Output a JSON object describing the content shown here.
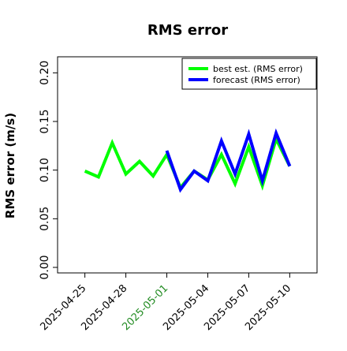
{
  "chart_data": {
    "type": "line",
    "title": "RMS error",
    "xlabel": "",
    "ylabel": "RMS error (m/s)",
    "ylim": [
      0.0,
      0.21
    ],
    "yticks": [
      0.0,
      0.05,
      0.1,
      0.15,
      0.2
    ],
    "ytick_labels": [
      "0.00",
      "0.05",
      "0.10",
      "0.15",
      "0.20"
    ],
    "xticks": [
      "2025-04-25",
      "2025-04-28",
      "2025-05-01",
      "2025-05-04",
      "2025-05-07",
      "2025-05-10"
    ],
    "xlim": [
      "2025-04-23",
      "2025-05-12"
    ],
    "highlight_tick": "2025-05-01",
    "highlight_color": "#228B22",
    "grid": false,
    "legend_position": "top-right",
    "series": [
      {
        "name": "best est. (RMS error)",
        "color": "#00ff00",
        "x": [
          "2025-04-25",
          "2025-04-26",
          "2025-04-27",
          "2025-04-28",
          "2025-04-29",
          "2025-04-30",
          "2025-05-01",
          "2025-05-02",
          "2025-05-03",
          "2025-05-04",
          "2025-05-05",
          "2025-05-06",
          "2025-05-07",
          "2025-05-08",
          "2025-05-09",
          "2025-05-10"
        ],
        "values": [
          0.099,
          0.093,
          0.128,
          0.096,
          0.109,
          0.094,
          0.116,
          0.082,
          0.099,
          0.09,
          0.116,
          0.086,
          0.124,
          0.084,
          0.132,
          0.104
        ]
      },
      {
        "name": "forecast (RMS error)",
        "color": "#0000ff",
        "x": [
          "2025-05-01",
          "2025-05-02",
          "2025-05-03",
          "2025-05-04",
          "2025-05-05",
          "2025-05-06",
          "2025-05-07",
          "2025-05-08",
          "2025-05-09",
          "2025-05-10"
        ],
        "values": [
          0.12,
          0.08,
          0.099,
          0.089,
          0.13,
          0.096,
          0.137,
          0.089,
          0.138,
          0.104
        ]
      }
    ]
  }
}
